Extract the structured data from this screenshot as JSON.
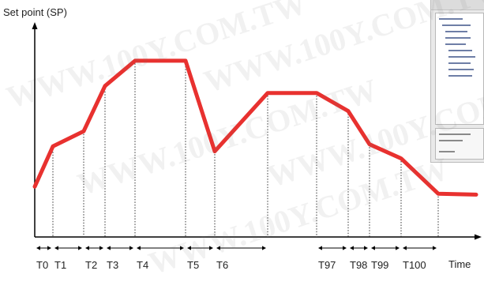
{
  "chart_data": {
    "type": "line",
    "ylabel": "Set point (SP)",
    "xlabel": "Time",
    "series": [
      {
        "values": [
          {
            "seg": 0,
            "sp": 50
          },
          {
            "seg": 1,
            "sp": 90
          },
          {
            "seg": 2,
            "sp": 105
          },
          {
            "seg": 3,
            "sp": 150
          },
          {
            "seg": 4,
            "sp": 175
          },
          {
            "seg": 5,
            "sp": 175
          },
          {
            "seg": 6,
            "sp": 85
          },
          {
            "seg": 7,
            "sp": 143
          },
          {
            "seg": 8,
            "sp": 143
          },
          {
            "seg": 9,
            "sp": 125
          },
          {
            "seg": 10,
            "sp": 92
          },
          {
            "seg": 11,
            "sp": 78
          },
          {
            "seg": 12,
            "sp": 43
          },
          {
            "seg": 13,
            "sp": 42
          }
        ]
      }
    ],
    "line_color": "#e8312f",
    "segments": [
      "T0",
      "T1",
      "T2",
      "T3",
      "T4",
      "T5",
      "T6",
      "T97",
      "T98",
      "T99",
      "T100"
    ]
  },
  "watermark": "WWW.100Y.COM.TW"
}
